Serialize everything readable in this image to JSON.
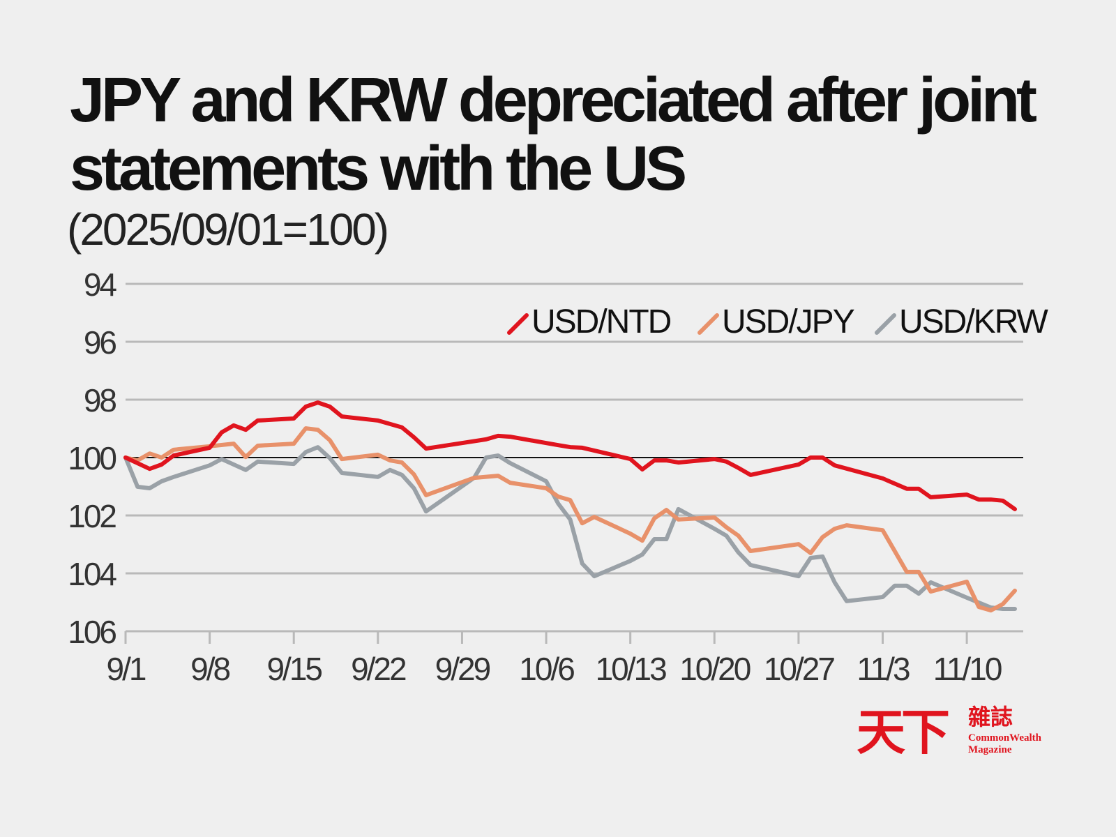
{
  "chart_data": {
    "type": "line",
    "title": "JPY and KRW depreciated after joint statements with the US",
    "subtitle": "(2025/09/01=100)",
    "xlabel": "",
    "ylabel": "",
    "x_ticks": [
      "9/1",
      "9/8",
      "9/15",
      "9/22",
      "9/29",
      "10/6",
      "10/13",
      "10/20",
      "10/27",
      "11/3",
      "11/10"
    ],
    "y_ticks": [
      94,
      96,
      98,
      100,
      102,
      104,
      106
    ],
    "ylim": [
      94,
      106
    ],
    "y_inverted": true,
    "grid": true,
    "reference_line": 100,
    "legend_position": "top-right",
    "series": [
      {
        "name": "USD/NTD",
        "color": "#e0141e",
        "points": [
          [
            "9/1",
            100.0
          ],
          [
            "9/3",
            100.39
          ],
          [
            "9/4",
            100.24
          ],
          [
            "9/5",
            99.93
          ],
          [
            "9/8",
            99.66
          ],
          [
            "9/9",
            99.13
          ],
          [
            "9/10",
            98.89
          ],
          [
            "9/11",
            99.04
          ],
          [
            "9/12",
            98.72
          ],
          [
            "9/15",
            98.65
          ],
          [
            "9/16",
            98.24
          ],
          [
            "9/17",
            98.1
          ],
          [
            "9/18",
            98.24
          ],
          [
            "9/19",
            98.58
          ],
          [
            "9/22",
            98.72
          ],
          [
            "9/24",
            98.96
          ],
          [
            "9/25",
            99.3
          ],
          [
            "9/26",
            99.69
          ],
          [
            "10/1",
            99.37
          ],
          [
            "10/2",
            99.25
          ],
          [
            "10/3",
            99.28
          ],
          [
            "10/7",
            99.57
          ],
          [
            "10/8",
            99.64
          ],
          [
            "10/9",
            99.66
          ],
          [
            "10/13",
            100.05
          ],
          [
            "10/14",
            100.41
          ],
          [
            "10/15",
            100.1
          ],
          [
            "10/16",
            100.1
          ],
          [
            "10/17",
            100.17
          ],
          [
            "10/20",
            100.05
          ],
          [
            "10/21",
            100.14
          ],
          [
            "10/22",
            100.36
          ],
          [
            "10/23",
            100.6
          ],
          [
            "10/27",
            100.24
          ],
          [
            "10/28",
            100.0
          ],
          [
            "10/29",
            100.0
          ],
          [
            "10/30",
            100.27
          ],
          [
            "11/3",
            100.72
          ],
          [
            "11/5",
            101.08
          ],
          [
            "11/6",
            101.08
          ],
          [
            "11/7",
            101.37
          ],
          [
            "11/10",
            101.28
          ],
          [
            "11/11",
            101.45
          ],
          [
            "11/12",
            101.45
          ],
          [
            "11/13",
            101.49
          ],
          [
            "11/14",
            101.78
          ]
        ]
      },
      {
        "name": "USD/JPY",
        "color": "#e8916a",
        "points": [
          [
            "9/1",
            100.0
          ],
          [
            "9/2",
            100.1
          ],
          [
            "9/3",
            99.86
          ],
          [
            "9/4",
            100.0
          ],
          [
            "9/5",
            99.73
          ],
          [
            "9/8",
            99.61
          ],
          [
            "9/10",
            99.52
          ],
          [
            "9/11",
            99.98
          ],
          [
            "9/12",
            99.59
          ],
          [
            "9/15",
            99.52
          ],
          [
            "9/16",
            98.99
          ],
          [
            "9/17",
            99.04
          ],
          [
            "9/18",
            99.4
          ],
          [
            "9/19",
            100.05
          ],
          [
            "9/22",
            99.9
          ],
          [
            "9/23",
            100.1
          ],
          [
            "9/24",
            100.17
          ],
          [
            "9/25",
            100.58
          ],
          [
            "9/26",
            101.3
          ],
          [
            "9/30",
            100.7
          ],
          [
            "10/2",
            100.63
          ],
          [
            "10/3",
            100.87
          ],
          [
            "10/6",
            101.06
          ],
          [
            "10/7",
            101.35
          ],
          [
            "10/8",
            101.47
          ],
          [
            "10/9",
            102.27
          ],
          [
            "10/10",
            102.05
          ],
          [
            "10/13",
            102.63
          ],
          [
            "10/14",
            102.87
          ],
          [
            "10/15",
            102.1
          ],
          [
            "10/16",
            101.81
          ],
          [
            "10/17",
            102.14
          ],
          [
            "10/20",
            102.07
          ],
          [
            "10/21",
            102.41
          ],
          [
            "10/22",
            102.7
          ],
          [
            "10/23",
            103.23
          ],
          [
            "10/27",
            102.99
          ],
          [
            "10/28",
            103.3
          ],
          [
            "10/29",
            102.75
          ],
          [
            "10/30",
            102.46
          ],
          [
            "10/31",
            102.34
          ],
          [
            "11/3",
            102.51
          ],
          [
            "11/5",
            103.95
          ],
          [
            "11/6",
            103.95
          ],
          [
            "11/7",
            104.63
          ],
          [
            "11/10",
            104.29
          ],
          [
            "11/11",
            105.16
          ],
          [
            "11/12",
            105.28
          ],
          [
            "11/13",
            105.06
          ],
          [
            "11/14",
            104.6
          ]
        ]
      },
      {
        "name": "USD/KRW",
        "color": "#9aa1a7",
        "points": [
          [
            "9/1",
            100.0
          ],
          [
            "9/2",
            101.01
          ],
          [
            "9/3",
            101.06
          ],
          [
            "9/4",
            100.82
          ],
          [
            "9/5",
            100.67
          ],
          [
            "9/8",
            100.27
          ],
          [
            "9/9",
            100.05
          ],
          [
            "9/11",
            100.43
          ],
          [
            "9/12",
            100.14
          ],
          [
            "9/15",
            100.22
          ],
          [
            "9/16",
            99.81
          ],
          [
            "9/17",
            99.64
          ],
          [
            "9/18",
            100.02
          ],
          [
            "9/19",
            100.53
          ],
          [
            "9/22",
            100.67
          ],
          [
            "9/23",
            100.43
          ],
          [
            "9/24",
            100.6
          ],
          [
            "9/25",
            101.06
          ],
          [
            "9/26",
            101.86
          ],
          [
            "9/30",
            100.7
          ],
          [
            "10/1",
            100.0
          ],
          [
            "10/2",
            99.93
          ],
          [
            "10/3",
            100.19
          ],
          [
            "10/6",
            100.82
          ],
          [
            "10/7",
            101.59
          ],
          [
            "10/8",
            102.14
          ],
          [
            "10/9",
            103.66
          ],
          [
            "10/10",
            104.1
          ],
          [
            "10/13",
            103.57
          ],
          [
            "10/14",
            103.35
          ],
          [
            "10/15",
            102.82
          ],
          [
            "10/16",
            102.82
          ],
          [
            "10/17",
            101.78
          ],
          [
            "10/20",
            102.46
          ],
          [
            "10/21",
            102.7
          ],
          [
            "10/22",
            103.28
          ],
          [
            "10/23",
            103.71
          ],
          [
            "10/27",
            104.1
          ],
          [
            "10/28",
            103.47
          ],
          [
            "10/29",
            103.42
          ],
          [
            "10/30",
            104.31
          ],
          [
            "10/31",
            104.96
          ],
          [
            "11/3",
            104.82
          ],
          [
            "11/4",
            104.43
          ],
          [
            "11/5",
            104.43
          ],
          [
            "11/6",
            104.7
          ],
          [
            "11/7",
            104.31
          ],
          [
            "11/10",
            104.84
          ],
          [
            "11/12",
            105.18
          ],
          [
            "11/13",
            105.23
          ],
          [
            "11/14",
            105.23
          ]
        ]
      }
    ]
  },
  "logo": {
    "chinese_main": "天下",
    "chinese_sub": "雜誌",
    "english_line1": "CommonWealth",
    "english_line2": "Magazine"
  }
}
